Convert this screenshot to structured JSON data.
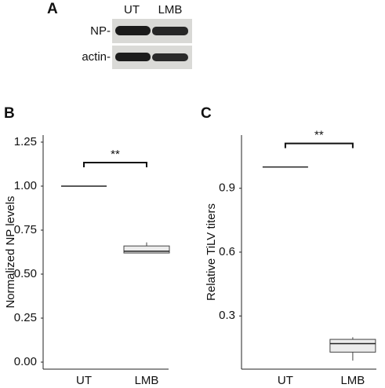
{
  "blot": {
    "panel": "A",
    "lanes": [
      "UT",
      "LMB"
    ],
    "rows": [
      "NP-",
      "actin-"
    ]
  },
  "chart_data": [
    {
      "type": "box",
      "panel": "B",
      "ylabel": "Normalized NP levels",
      "categories": [
        "UT",
        "LMB"
      ],
      "boxes": [
        {
          "min": 1.0,
          "q1": 1.0,
          "median": 1.0,
          "q3": 1.0,
          "max": 1.0
        },
        {
          "min": 0.62,
          "q1": 0.62,
          "median": 0.63,
          "q3": 0.66,
          "max": 0.68
        }
      ],
      "color": "#ececec",
      "annotation": "**",
      "ylim": [
        -0.04,
        1.29
      ],
      "yticks": [
        {
          "value": 0,
          "label": "0.00"
        },
        0.25,
        {
          "value": 0.5,
          "label": "0.50"
        },
        0.75,
        {
          "value": 1,
          "label": "1.00"
        },
        1.25
      ]
    },
    {
      "type": "box",
      "panel": "C",
      "ylabel": "Relative TiLV titers",
      "categories": [
        "UT",
        "LMB"
      ],
      "boxes": [
        {
          "min": 1.0,
          "q1": 1.0,
          "median": 1.0,
          "q3": 1.0,
          "max": 1.0
        },
        {
          "min": 0.09,
          "q1": 0.13,
          "median": 0.17,
          "q3": 0.19,
          "max": 0.2
        }
      ],
      "color": "#ececec",
      "annotation": "**",
      "ylim": [
        0.05,
        1.15
      ],
      "yticks": [
        0.3,
        0.6,
        0.9
      ]
    }
  ]
}
